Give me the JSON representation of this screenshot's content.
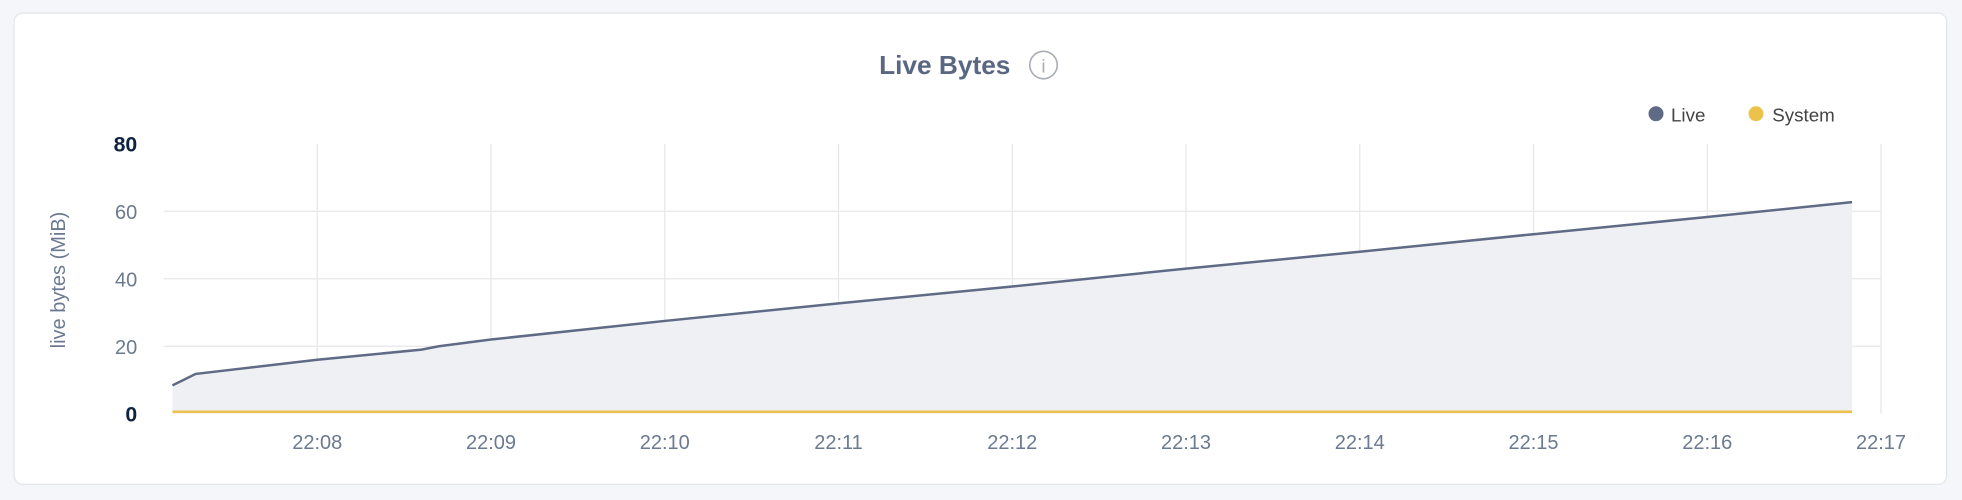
{
  "chart_data": {
    "type": "area",
    "title": "Live Bytes",
    "info_icon": "info-circle-icon",
    "ylabel": "live bytes (MiB)",
    "xlabel": "",
    "ylim": [
      0,
      80
    ],
    "yticks": [
      "0",
      "20",
      "40",
      "60",
      "80"
    ],
    "xticks": [
      "22:08",
      "22:09",
      "22:10",
      "22:11",
      "22:12",
      "22:13",
      "22:14",
      "22:15",
      "22:16",
      "22:17"
    ],
    "grid": true,
    "legend_position": "top-right",
    "x": [
      "22:07:10",
      "22:07:18",
      "22:08:00",
      "22:08:36",
      "22:08:42",
      "22:09:00",
      "22:10:00",
      "22:11:00",
      "22:12:00",
      "22:13:00",
      "22:14:00",
      "22:15:00",
      "22:16:00",
      "22:16:50"
    ],
    "series": [
      {
        "name": "Live",
        "color": "#5f6b85",
        "fill": "#eef0f4",
        "values": [
          8.4,
          11.8,
          16,
          19,
          20,
          22,
          27.5,
          32.7,
          37.7,
          43,
          48,
          53.2,
          58.3,
          62.7
        ]
      },
      {
        "name": "System",
        "color": "#ecc24b",
        "values": [
          0.6,
          0.6,
          0.6,
          0.6,
          0.6,
          0.6,
          0.6,
          0.6,
          0.6,
          0.6,
          0.6,
          0.6,
          0.6,
          0.6
        ]
      }
    ]
  }
}
